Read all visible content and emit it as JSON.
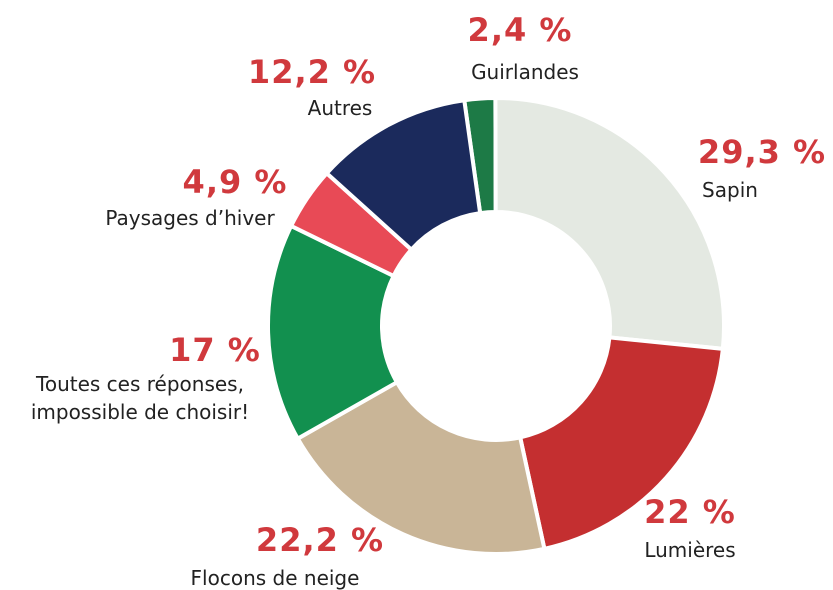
{
  "chart_data": {
    "type": "donut",
    "categories": [
      "Guirlandes",
      "Sapin",
      "Lumières",
      "Flocons de neige",
      "Toutes ces réponses, impossible de choisir!",
      "Paysages d’hiver",
      "Autres"
    ],
    "values": [
      2.4,
      29.3,
      22,
      22.2,
      17,
      4.9,
      12.2
    ],
    "value_labels": [
      "2,4 %",
      "29,3 %",
      "22 %",
      "22,2 %",
      "17 %",
      "4,9 %",
      "12,2 %"
    ],
    "colors": [
      "#1d7a46",
      "#e4e9e2",
      "#c42f30",
      "#c9b597",
      "#12904f",
      "#e84a56",
      "#1b2a5c"
    ]
  }
}
